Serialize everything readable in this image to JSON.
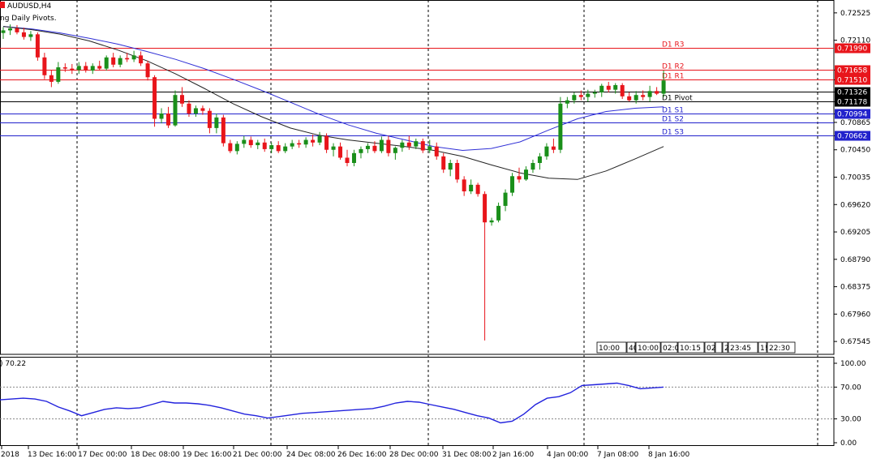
{
  "header": {
    "symbol": "AUDUSD,H4",
    "indicator": "ng Daily Pivots."
  },
  "colors": {
    "bull": "#1a8f1a",
    "bear": "#e8151b",
    "ma_slow": "#2f2fd6",
    "ma_fast": "#222222",
    "res": "#e8151b",
    "sup": "#2222cc",
    "pivot": "#000000",
    "rsi": "#2222dd"
  },
  "price_axis": {
    "ticks": [
      "0.72525",
      "0.72110",
      "0.71658",
      "0.71510",
      "0.71326",
      "0.71178",
      "0.70994",
      "0.70865",
      "0.70662",
      "0.70450",
      "0.70035",
      "0.69620",
      "0.69205",
      "0.68790",
      "0.68375",
      "0.67960",
      "0.67545"
    ],
    "range": [
      0.6735,
      0.7272
    ]
  },
  "pivots": [
    {
      "name": "D1 R3",
      "price": 0.7199,
      "label": "0.71990",
      "kind": "res"
    },
    {
      "name": "D1 R2",
      "price": 0.71658,
      "label": "0.71658",
      "kind": "res"
    },
    {
      "name": "D1 R1",
      "price": 0.7151,
      "label": "0.71510",
      "kind": "res"
    },
    {
      "name": "",
      "price": 0.71326,
      "label": "0.71326",
      "kind": "current"
    },
    {
      "name": "D1 Pivot",
      "price": 0.71178,
      "label": "0.71178",
      "kind": "pivot"
    },
    {
      "name": "D1 S1",
      "price": 0.70994,
      "label": "0.70994",
      "kind": "sup"
    },
    {
      "name": "D1 S2",
      "price": 0.70865,
      "label": "",
      "kind": "sup"
    },
    {
      "name": "D1 S3",
      "price": 0.70662,
      "label": "0.70662",
      "kind": "sup"
    }
  ],
  "time_axis": [
    "2018",
    "13 Dec 16:00",
    "17 Dec 00:00",
    "18 Dec 08:00",
    "19 Dec 16:00",
    "21 Dec 00:00",
    "24 Dec 08:00",
    "26 Dec 16:00",
    "28 Dec 00:00",
    "31 Dec 08:00",
    "2 Jan 16:00",
    "4 Jan 00:00",
    "7 Jan 08:00",
    "8 Jan 16:00"
  ],
  "session_boxes": [
    "10:00",
    "40",
    "10:00",
    "02:0",
    "10:15",
    "02",
    "",
    "2",
    "23:45",
    "1!",
    "22:30"
  ],
  "rsi": {
    "label": "70.22",
    "ticks": [
      "100.00",
      "70.00",
      "30.00",
      "0.00"
    ],
    "levels": [
      70,
      30
    ]
  },
  "chart_data": {
    "type": "candlestick",
    "series": [
      {
        "o": 0.7222,
        "h": 0.7231,
        "l": 0.7213,
        "c": 0.7226
      },
      {
        "o": 0.7226,
        "h": 0.7235,
        "l": 0.7219,
        "c": 0.7229
      },
      {
        "o": 0.7229,
        "h": 0.7234,
        "l": 0.722,
        "c": 0.7223
      },
      {
        "o": 0.7223,
        "h": 0.723,
        "l": 0.7212,
        "c": 0.7216
      },
      {
        "o": 0.7216,
        "h": 0.7225,
        "l": 0.721,
        "c": 0.722
      },
      {
        "o": 0.722,
        "h": 0.7223,
        "l": 0.718,
        "c": 0.7185
      },
      {
        "o": 0.7185,
        "h": 0.7192,
        "l": 0.7152,
        "c": 0.7158
      },
      {
        "o": 0.7158,
        "h": 0.7166,
        "l": 0.714,
        "c": 0.7148
      },
      {
        "o": 0.7148,
        "h": 0.7178,
        "l": 0.7145,
        "c": 0.717
      },
      {
        "o": 0.717,
        "h": 0.7176,
        "l": 0.7163,
        "c": 0.7168
      },
      {
        "o": 0.7168,
        "h": 0.7175,
        "l": 0.716,
        "c": 0.7166
      },
      {
        "o": 0.7166,
        "h": 0.7178,
        "l": 0.716,
        "c": 0.7172
      },
      {
        "o": 0.7172,
        "h": 0.7178,
        "l": 0.7162,
        "c": 0.7165
      },
      {
        "o": 0.7165,
        "h": 0.7176,
        "l": 0.716,
        "c": 0.7172
      },
      {
        "o": 0.7172,
        "h": 0.718,
        "l": 0.7165,
        "c": 0.7168
      },
      {
        "o": 0.7168,
        "h": 0.7188,
        "l": 0.7165,
        "c": 0.7185
      },
      {
        "o": 0.7185,
        "h": 0.7192,
        "l": 0.717,
        "c": 0.7174
      },
      {
        "o": 0.7174,
        "h": 0.7188,
        "l": 0.717,
        "c": 0.7184
      },
      {
        "o": 0.7184,
        "h": 0.7192,
        "l": 0.7178,
        "c": 0.7182
      },
      {
        "o": 0.7182,
        "h": 0.7195,
        "l": 0.7178,
        "c": 0.7188
      },
      {
        "o": 0.7188,
        "h": 0.7194,
        "l": 0.7172,
        "c": 0.7176
      },
      {
        "o": 0.7176,
        "h": 0.718,
        "l": 0.715,
        "c": 0.7155
      },
      {
        "o": 0.7155,
        "h": 0.7158,
        "l": 0.708,
        "c": 0.7092
      },
      {
        "o": 0.7092,
        "h": 0.7108,
        "l": 0.7085,
        "c": 0.71
      },
      {
        "o": 0.71,
        "h": 0.711,
        "l": 0.7078,
        "c": 0.7082
      },
      {
        "o": 0.7082,
        "h": 0.7135,
        "l": 0.708,
        "c": 0.7128
      },
      {
        "o": 0.7128,
        "h": 0.714,
        "l": 0.711,
        "c": 0.7115
      },
      {
        "o": 0.7115,
        "h": 0.712,
        "l": 0.7095,
        "c": 0.71
      },
      {
        "o": 0.71,
        "h": 0.7112,
        "l": 0.7095,
        "c": 0.7108
      },
      {
        "o": 0.7108,
        "h": 0.7112,
        "l": 0.7098,
        "c": 0.7104
      },
      {
        "o": 0.7104,
        "h": 0.7108,
        "l": 0.707,
        "c": 0.7078
      },
      {
        "o": 0.7078,
        "h": 0.71,
        "l": 0.707,
        "c": 0.7094
      },
      {
        "o": 0.7094,
        "h": 0.7098,
        "l": 0.705,
        "c": 0.7055
      },
      {
        "o": 0.7055,
        "h": 0.706,
        "l": 0.704,
        "c": 0.7043
      },
      {
        "o": 0.7043,
        "h": 0.7058,
        "l": 0.7038,
        "c": 0.7054
      },
      {
        "o": 0.7054,
        "h": 0.7066,
        "l": 0.7048,
        "c": 0.706
      },
      {
        "o": 0.706,
        "h": 0.7065,
        "l": 0.7048,
        "c": 0.7052
      },
      {
        "o": 0.7052,
        "h": 0.706,
        "l": 0.7046,
        "c": 0.7056
      },
      {
        "o": 0.7056,
        "h": 0.7062,
        "l": 0.7042,
        "c": 0.7046
      },
      {
        "o": 0.7046,
        "h": 0.7056,
        "l": 0.704,
        "c": 0.7052
      },
      {
        "o": 0.7052,
        "h": 0.7058,
        "l": 0.704,
        "c": 0.7043
      },
      {
        "o": 0.7043,
        "h": 0.7055,
        "l": 0.704,
        "c": 0.705
      },
      {
        "o": 0.705,
        "h": 0.706,
        "l": 0.7046,
        "c": 0.7055
      },
      {
        "o": 0.7055,
        "h": 0.706,
        "l": 0.7048,
        "c": 0.7053
      },
      {
        "o": 0.7053,
        "h": 0.7064,
        "l": 0.7048,
        "c": 0.706
      },
      {
        "o": 0.706,
        "h": 0.7068,
        "l": 0.705,
        "c": 0.7056
      },
      {
        "o": 0.7056,
        "h": 0.7072,
        "l": 0.7052,
        "c": 0.7066
      },
      {
        "o": 0.7066,
        "h": 0.707,
        "l": 0.704,
        "c": 0.7045
      },
      {
        "o": 0.7045,
        "h": 0.7055,
        "l": 0.7035,
        "c": 0.705
      },
      {
        "o": 0.705,
        "h": 0.7056,
        "l": 0.703,
        "c": 0.7033
      },
      {
        "o": 0.7033,
        "h": 0.7045,
        "l": 0.702,
        "c": 0.7025
      },
      {
        "o": 0.7025,
        "h": 0.7045,
        "l": 0.702,
        "c": 0.704
      },
      {
        "o": 0.704,
        "h": 0.705,
        "l": 0.7032,
        "c": 0.7046
      },
      {
        "o": 0.7046,
        "h": 0.7055,
        "l": 0.704,
        "c": 0.7051
      },
      {
        "o": 0.7051,
        "h": 0.7058,
        "l": 0.704,
        "c": 0.7043
      },
      {
        "o": 0.7043,
        "h": 0.7065,
        "l": 0.704,
        "c": 0.706
      },
      {
        "o": 0.706,
        "h": 0.7066,
        "l": 0.7035,
        "c": 0.704
      },
      {
        "o": 0.704,
        "h": 0.705,
        "l": 0.703,
        "c": 0.7048
      },
      {
        "o": 0.7048,
        "h": 0.706,
        "l": 0.7042,
        "c": 0.7056
      },
      {
        "o": 0.7056,
        "h": 0.7066,
        "l": 0.7045,
        "c": 0.705
      },
      {
        "o": 0.705,
        "h": 0.7062,
        "l": 0.7046,
        "c": 0.7058
      },
      {
        "o": 0.7058,
        "h": 0.7062,
        "l": 0.704,
        "c": 0.7044
      },
      {
        "o": 0.7044,
        "h": 0.706,
        "l": 0.704,
        "c": 0.705
      },
      {
        "o": 0.705,
        "h": 0.7056,
        "l": 0.703,
        "c": 0.7035
      },
      {
        "o": 0.7035,
        "h": 0.704,
        "l": 0.701,
        "c": 0.7015
      },
      {
        "o": 0.7015,
        "h": 0.703,
        "l": 0.7005,
        "c": 0.7025
      },
      {
        "o": 0.7025,
        "h": 0.703,
        "l": 0.6995,
        "c": 0.7
      },
      {
        "o": 0.7,
        "h": 0.7005,
        "l": 0.6975,
        "c": 0.6982
      },
      {
        "o": 0.6982,
        "h": 0.7,
        "l": 0.6978,
        "c": 0.6992
      },
      {
        "o": 0.6992,
        "h": 0.6995,
        "l": 0.6974,
        "c": 0.6978
      },
      {
        "o": 0.6978,
        "h": 0.6982,
        "l": 0.6756,
        "c": 0.6935
      },
      {
        "o": 0.6935,
        "h": 0.6942,
        "l": 0.693,
        "c": 0.6938
      },
      {
        "o": 0.6938,
        "h": 0.6965,
        "l": 0.6935,
        "c": 0.696
      },
      {
        "o": 0.696,
        "h": 0.6985,
        "l": 0.6952,
        "c": 0.698
      },
      {
        "o": 0.698,
        "h": 0.701,
        "l": 0.6975,
        "c": 0.7005
      },
      {
        "o": 0.7005,
        "h": 0.7018,
        "l": 0.6995,
        "c": 0.7
      },
      {
        "o": 0.7,
        "h": 0.702,
        "l": 0.6998,
        "c": 0.7015
      },
      {
        "o": 0.7015,
        "h": 0.703,
        "l": 0.701,
        "c": 0.7025
      },
      {
        "o": 0.7025,
        "h": 0.704,
        "l": 0.7015,
        "c": 0.7035
      },
      {
        "o": 0.7035,
        "h": 0.7055,
        "l": 0.703,
        "c": 0.705
      },
      {
        "o": 0.705,
        "h": 0.7062,
        "l": 0.704,
        "c": 0.7045
      },
      {
        "o": 0.7045,
        "h": 0.7125,
        "l": 0.704,
        "c": 0.7115
      },
      {
        "o": 0.7115,
        "h": 0.7125,
        "l": 0.7108,
        "c": 0.712
      },
      {
        "o": 0.712,
        "h": 0.7132,
        "l": 0.7115,
        "c": 0.7128
      },
      {
        "o": 0.7128,
        "h": 0.7135,
        "l": 0.712,
        "c": 0.7125
      },
      {
        "o": 0.7125,
        "h": 0.7136,
        "l": 0.7118,
        "c": 0.713
      },
      {
        "o": 0.713,
        "h": 0.7136,
        "l": 0.7124,
        "c": 0.7132
      },
      {
        "o": 0.7132,
        "h": 0.7145,
        "l": 0.7125,
        "c": 0.7142
      },
      {
        "o": 0.7142,
        "h": 0.7148,
        "l": 0.7132,
        "c": 0.7136
      },
      {
        "o": 0.7136,
        "h": 0.7146,
        "l": 0.713,
        "c": 0.7143
      },
      {
        "o": 0.7143,
        "h": 0.7146,
        "l": 0.7122,
        "c": 0.7126
      },
      {
        "o": 0.7126,
        "h": 0.7132,
        "l": 0.7118,
        "c": 0.712
      },
      {
        "o": 0.712,
        "h": 0.7134,
        "l": 0.7115,
        "c": 0.7128
      },
      {
        "o": 0.7128,
        "h": 0.7135,
        "l": 0.712,
        "c": 0.7125
      },
      {
        "o": 0.7125,
        "h": 0.7142,
        "l": 0.7118,
        "c": 0.7134
      },
      {
        "o": 0.7134,
        "h": 0.714,
        "l": 0.7128,
        "c": 0.713
      },
      {
        "o": 0.713,
        "h": 0.7165,
        "l": 0.7125,
        "c": 0.715
      }
    ],
    "ma_slow": [
      0.7232,
      0.7228,
      0.7222,
      0.7214,
      0.7205,
      0.7194,
      0.7182,
      0.7168,
      0.7152,
      0.7135,
      0.7117,
      0.7099,
      0.7083,
      0.707,
      0.706,
      0.705,
      0.7044,
      0.7047,
      0.7057,
      0.7075,
      0.7092,
      0.7103,
      0.7108,
      0.711
    ],
    "ma_fast": [
      0.7232,
      0.7227,
      0.722,
      0.721,
      0.7196,
      0.718,
      0.716,
      0.7138,
      0.7115,
      0.7095,
      0.7078,
      0.7067,
      0.706,
      0.7055,
      0.705,
      0.7044,
      0.7035,
      0.7022,
      0.701,
      0.7002,
      0.7,
      0.7013,
      0.7031,
      0.705
    ],
    "rsi_values": [
      54,
      55,
      56,
      55,
      52,
      45,
      40,
      34,
      38,
      42,
      44,
      43,
      44,
      48,
      52,
      50,
      50,
      49,
      47,
      44,
      40,
      36,
      34,
      31,
      33,
      35,
      37,
      38,
      39,
      40,
      41,
      42,
      43,
      46,
      50,
      52,
      51,
      48,
      45,
      42,
      38,
      34,
      31,
      25,
      27,
      36,
      48,
      56,
      58,
      63,
      72,
      73,
      74,
      75,
      72,
      68,
      69,
      70
    ]
  }
}
